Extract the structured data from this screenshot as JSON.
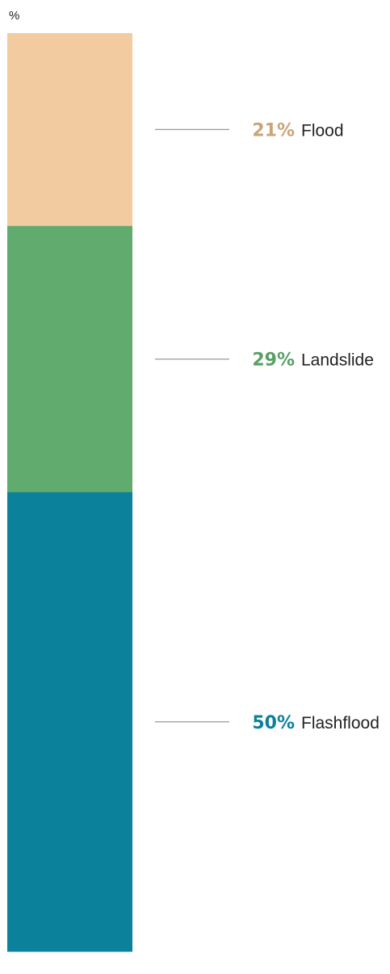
{
  "chart_data": {
    "type": "bar",
    "stacked": true,
    "unit_label": "%",
    "categories": [
      "Flood",
      "Landslide",
      "Flashflood"
    ],
    "values": [
      21,
      29,
      50
    ],
    "value_labels": [
      "21%",
      "29%",
      "50%"
    ],
    "colors": {
      "Flood": {
        "bar": "#f2cca0",
        "label": "#c9a478"
      },
      "Landslide": {
        "bar": "#62ab6f",
        "label": "#5a9f66"
      },
      "Flashflood": {
        "bar": "#0c819c",
        "label": "#0c819c"
      }
    }
  }
}
